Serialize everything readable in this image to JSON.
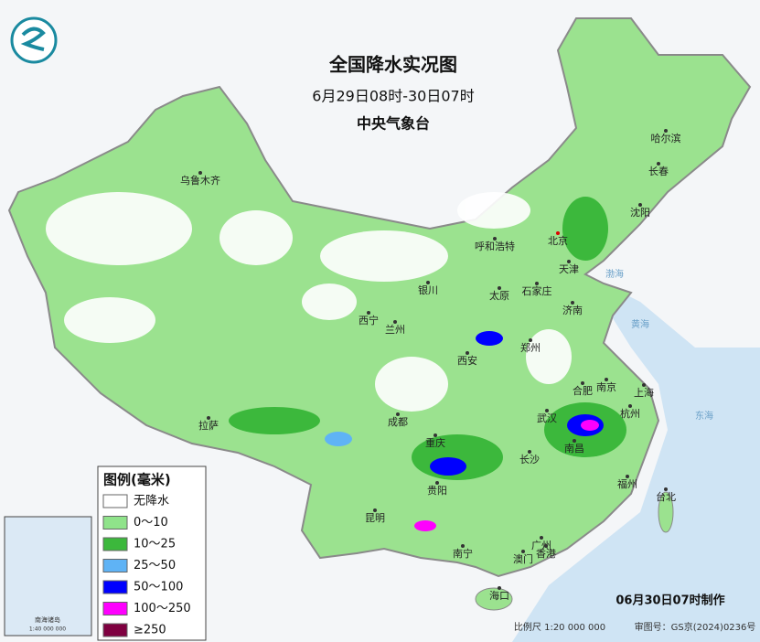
{
  "header": {
    "title": "全国降水实况图",
    "subtitle": "6月29日08时-30日07时",
    "agency": "中央气象台"
  },
  "cities": [
    {
      "name": "乌鲁木齐"
    },
    {
      "name": "呼和浩特"
    },
    {
      "name": "北京"
    },
    {
      "name": "天津"
    },
    {
      "name": "沈阳"
    },
    {
      "name": "长春"
    },
    {
      "name": "哈尔滨"
    },
    {
      "name": "银川"
    },
    {
      "name": "太原"
    },
    {
      "name": "石家庄"
    },
    {
      "name": "济南"
    },
    {
      "name": "西宁"
    },
    {
      "name": "兰州"
    },
    {
      "name": "郑州"
    },
    {
      "name": "西安"
    },
    {
      "name": "合肥"
    },
    {
      "name": "南京"
    },
    {
      "name": "上海"
    },
    {
      "name": "武汉"
    },
    {
      "name": "杭州"
    },
    {
      "name": "拉萨"
    },
    {
      "name": "成都"
    },
    {
      "name": "重庆"
    },
    {
      "name": "长沙"
    },
    {
      "name": "南昌"
    },
    {
      "name": "福州"
    },
    {
      "name": "台北"
    },
    {
      "name": "贵阳"
    },
    {
      "name": "昆明"
    },
    {
      "name": "南宁"
    },
    {
      "name": "广州"
    },
    {
      "name": "澳门"
    },
    {
      "name": "香港"
    },
    {
      "name": "海口"
    }
  ],
  "seas": [
    {
      "name": "渤海"
    },
    {
      "name": "黄海"
    },
    {
      "name": "东海"
    }
  ],
  "legend": {
    "title": "图例(毫米)",
    "items": [
      {
        "label": "无降水",
        "color": "#ffffff"
      },
      {
        "label": "0～10",
        "color": "#8fe38a"
      },
      {
        "label": "10～25",
        "color": "#3cb83c"
      },
      {
        "label": "25～50",
        "color": "#5fb3f5"
      },
      {
        "label": "50～100",
        "color": "#0000fe"
      },
      {
        "label": "100～250",
        "color": "#fe00fe"
      },
      {
        "label": "≥250",
        "color": "#7f0040"
      }
    ]
  },
  "inset": {
    "title": "南海诸岛",
    "scale": "1:40 000 000"
  },
  "footer": {
    "made": "06月30日07时制作",
    "scale": "比例尺 1:20 000 000",
    "approval": "审图号：GS京(2024)0236号"
  }
}
